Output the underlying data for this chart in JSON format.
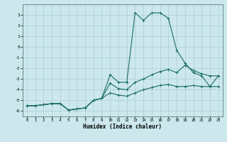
{
  "xlabel": "Humidex (Indice chaleur)",
  "bg_color": "#cce8ec",
  "grid_color": "#aacdd4",
  "line_color": "#1a6b6b",
  "xlim": [
    -0.5,
    23.5
  ],
  "ylim": [
    -6.5,
    4.0
  ],
  "xticks": [
    0,
    1,
    2,
    3,
    4,
    5,
    6,
    7,
    8,
    9,
    10,
    11,
    12,
    13,
    14,
    15,
    16,
    17,
    18,
    19,
    20,
    21,
    22,
    23
  ],
  "yticks": [
    -6,
    -5,
    -4,
    -3,
    -2,
    -1,
    0,
    1,
    2,
    3
  ],
  "line1_x": [
    0,
    1,
    2,
    3,
    4,
    5,
    6,
    7,
    8,
    9,
    10,
    11,
    12,
    13,
    14,
    15,
    16,
    17,
    18,
    19,
    20,
    21,
    22,
    23
  ],
  "line1_y": [
    -5.5,
    -5.5,
    -5.4,
    -5.3,
    -5.3,
    -5.9,
    -5.8,
    -5.7,
    -5.0,
    -4.8,
    -2.6,
    -3.3,
    -3.3,
    3.2,
    2.5,
    3.2,
    3.2,
    2.7,
    -0.3,
    -1.5,
    -2.4,
    -2.7,
    -3.7,
    -2.7
  ],
  "line2_x": [
    0,
    1,
    2,
    3,
    4,
    5,
    6,
    7,
    8,
    9,
    10,
    11,
    12,
    13,
    14,
    15,
    16,
    17,
    18,
    19,
    20,
    21,
    22,
    23
  ],
  "line2_y": [
    -5.5,
    -5.5,
    -5.4,
    -5.3,
    -5.3,
    -5.9,
    -5.8,
    -5.7,
    -5.0,
    -4.8,
    -3.4,
    -3.9,
    -4.0,
    -3.3,
    -3.0,
    -2.6,
    -2.3,
    -2.1,
    -2.4,
    -1.7,
    -2.2,
    -2.5,
    -2.7,
    -2.7
  ],
  "line3_x": [
    0,
    1,
    2,
    3,
    4,
    5,
    6,
    7,
    8,
    9,
    10,
    11,
    12,
    13,
    14,
    15,
    16,
    17,
    18,
    19,
    20,
    21,
    22,
    23
  ],
  "line3_y": [
    -5.5,
    -5.5,
    -5.4,
    -5.3,
    -5.3,
    -5.9,
    -5.8,
    -5.7,
    -5.0,
    -4.8,
    -4.3,
    -4.5,
    -4.6,
    -4.3,
    -4.0,
    -3.8,
    -3.6,
    -3.5,
    -3.7,
    -3.7,
    -3.6,
    -3.7,
    -3.7,
    -3.7
  ]
}
